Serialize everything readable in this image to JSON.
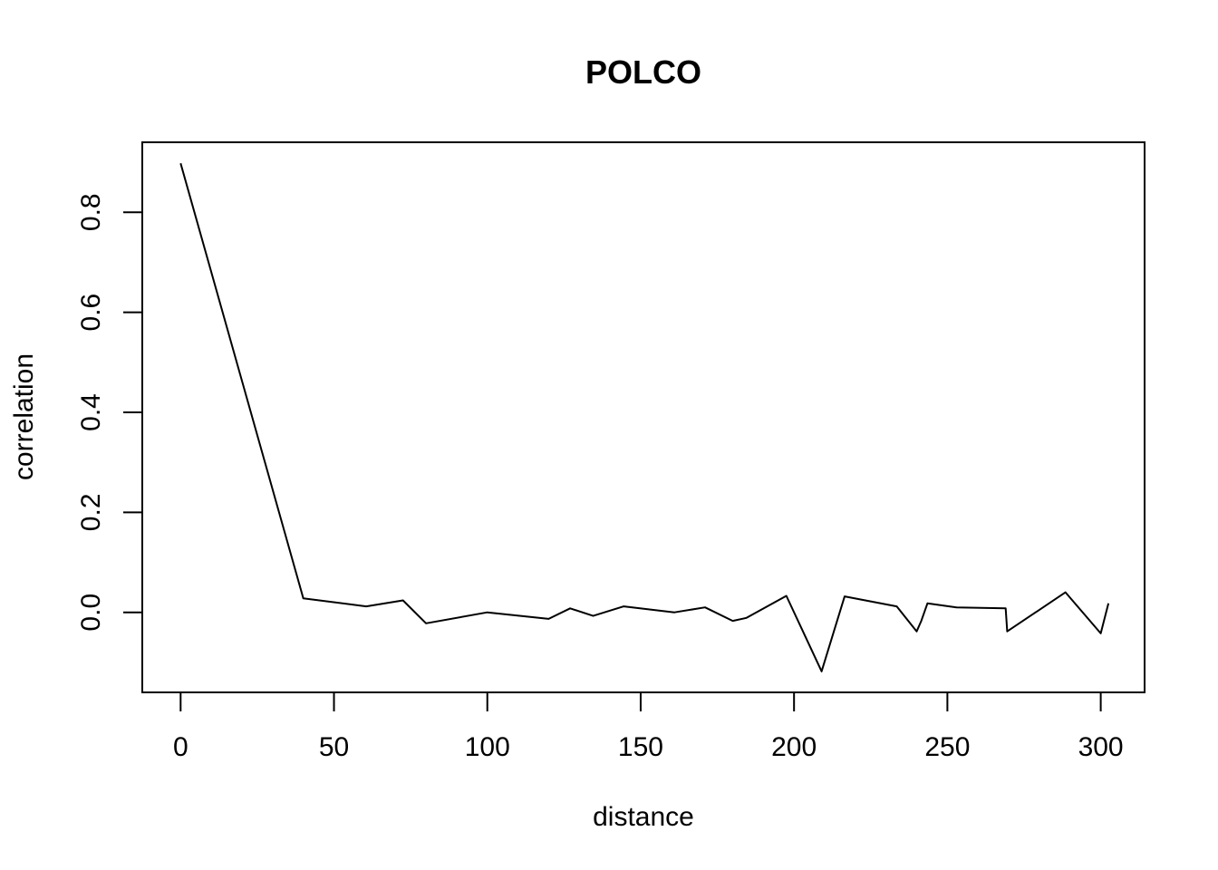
{
  "chart_data": {
    "type": "line",
    "title": "POLCO",
    "xlabel": "distance",
    "ylabel": "correlation",
    "xlim": [
      -12.5,
      314.3
    ],
    "ylim": [
      -0.16,
      0.94
    ],
    "x_ticks": [
      0,
      50,
      100,
      150,
      200,
      250,
      300
    ],
    "x_tick_labels": [
      "0",
      "50",
      "100",
      "150",
      "200",
      "250",
      "300"
    ],
    "y_ticks": [
      0.0,
      0.2,
      0.4,
      0.6,
      0.8
    ],
    "y_tick_labels": [
      "0.0",
      "0.2",
      "0.4",
      "0.6",
      "0.8"
    ],
    "grid": false,
    "legend": false,
    "line_color": "#000000",
    "series": [
      {
        "x": [
          0,
          40,
          60.5,
          72.5,
          80,
          100,
          120,
          127,
          134.5,
          144.5,
          161,
          171,
          180,
          184.5,
          197.5,
          209,
          216.5,
          233.5,
          240,
          241.5,
          243.5,
          253,
          269,
          269.5,
          288.5,
          300,
          302.5
        ],
        "y": [
          0.898,
          0.028,
          0.012,
          0.024,
          -0.022,
          0.0,
          -0.013,
          0.008,
          -0.007,
          0.012,
          0.0,
          0.01,
          -0.017,
          -0.011,
          0.033,
          -0.118,
          0.032,
          0.012,
          -0.038,
          -0.017,
          0.018,
          0.01,
          0.008,
          -0.038,
          0.04,
          -0.042,
          0.018
        ]
      }
    ]
  }
}
